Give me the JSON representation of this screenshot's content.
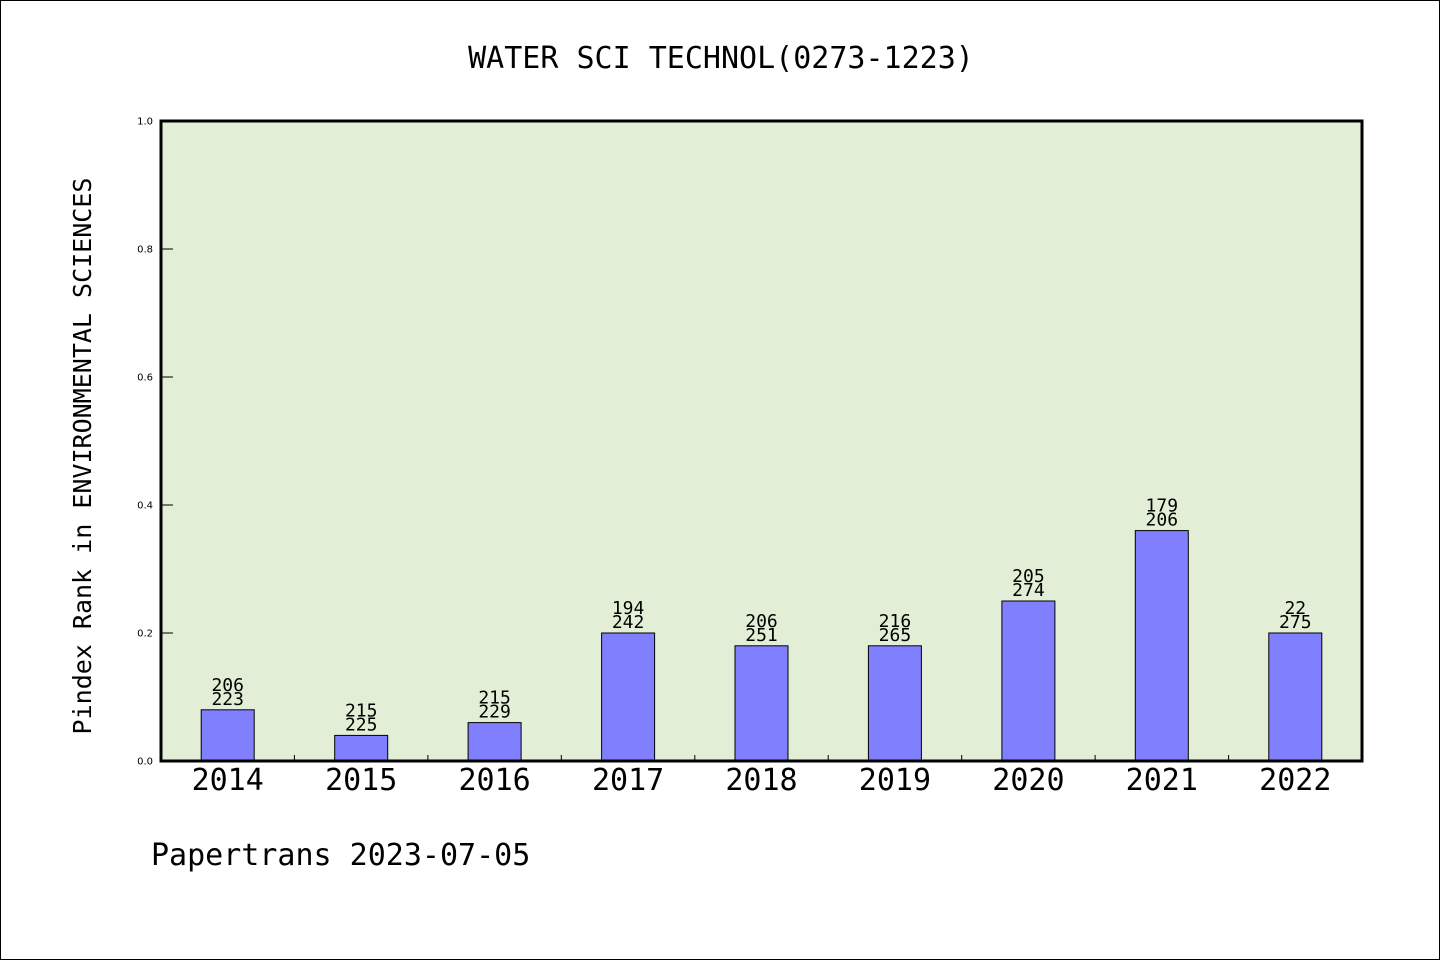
{
  "chart_data": {
    "type": "bar",
    "title": "WATER SCI TECHNOL(0273-1223)",
    "xlabel": "",
    "ylabel": "Pindex Rank in ENVIRONMENTAL SCIENCES",
    "ylim": [
      0.0,
      1.0
    ],
    "yticks": [
      "0.0",
      "0.2",
      "0.4",
      "0.6",
      "0.8",
      "1.0"
    ],
    "categories": [
      "2014",
      "2015",
      "2016",
      "2017",
      "2018",
      "2019",
      "2020",
      "2021",
      "2022"
    ],
    "values": [
      0.08,
      0.04,
      0.06,
      0.2,
      0.18,
      0.18,
      0.25,
      0.36,
      0.2
    ],
    "labels_top": [
      "206",
      "215",
      "215",
      "194",
      "206",
      "216",
      "205",
      "179",
      "22"
    ],
    "labels_bottom": [
      "223",
      "225",
      "229",
      "242",
      "251",
      "265",
      "274",
      "206",
      "275"
    ],
    "grid": false,
    "colors": {
      "bar": "#8080ff",
      "plot_background": "#e2efd6",
      "axis": "#000000"
    }
  },
  "footer": "Papertrans 2023-07-05"
}
